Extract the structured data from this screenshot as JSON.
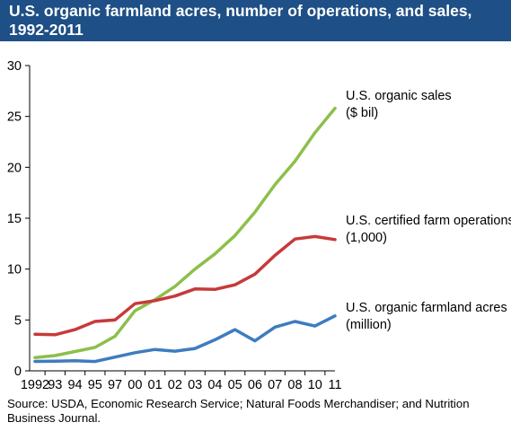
{
  "header": {
    "title": "U.S. organic farmland acres, number of operations, and sales, 1992-2011"
  },
  "footer": {
    "source": "Source: USDA, Economic Research Service; Natural Foods Merchandiser; and Nutrition Business Journal."
  },
  "colors": {
    "header_bg": "#1e4f86",
    "sales": "#8dbf4b",
    "operations": "#c8393b",
    "acres": "#3e7cbf"
  },
  "chart_data": {
    "type": "line",
    "title": "U.S. organic farmland acres, number of operations, and sales, 1992-2011",
    "categories": [
      "1992",
      "93",
      "94",
      "95",
      "97",
      "00",
      "01",
      "02",
      "03",
      "04",
      "05",
      "06",
      "07",
      "08",
      "10",
      "11"
    ],
    "ylim": [
      0,
      30
    ],
    "yticks": [
      0,
      5,
      10,
      15,
      20,
      25,
      30
    ],
    "grid": false,
    "legend": "direct labels at right",
    "series": [
      {
        "name": "U.S. organic sales ($ bil)",
        "label_lines": [
          "U.S. organic sales",
          "($ bil)"
        ],
        "color": "#8dbf4b",
        "values": [
          1.3,
          1.5,
          1.9,
          2.3,
          3.4,
          5.9,
          7.0,
          8.3,
          10.0,
          11.5,
          13.3,
          15.6,
          18.3,
          20.6,
          23.4,
          25.8
        ]
      },
      {
        "name": "U.S. certified farm operations (1,000)",
        "label_lines": [
          "U.S. certified farm operations",
          "(1,000)"
        ],
        "color": "#c8393b",
        "values": [
          3.6,
          3.55,
          4.05,
          4.85,
          5.0,
          6.6,
          6.9,
          7.35,
          8.05,
          8.0,
          8.45,
          9.5,
          11.35,
          12.95,
          13.2,
          12.9
        ]
      },
      {
        "name": "U.S. organic farmland acres (million)",
        "label_lines": [
          "U.S. organic farmland acres",
          "(million)"
        ],
        "color": "#3e7cbf",
        "values": [
          0.93,
          0.95,
          0.99,
          0.92,
          1.35,
          1.78,
          2.1,
          1.93,
          2.2,
          3.05,
          4.05,
          2.95,
          4.3,
          4.85,
          4.4,
          5.4
        ]
      }
    ]
  }
}
